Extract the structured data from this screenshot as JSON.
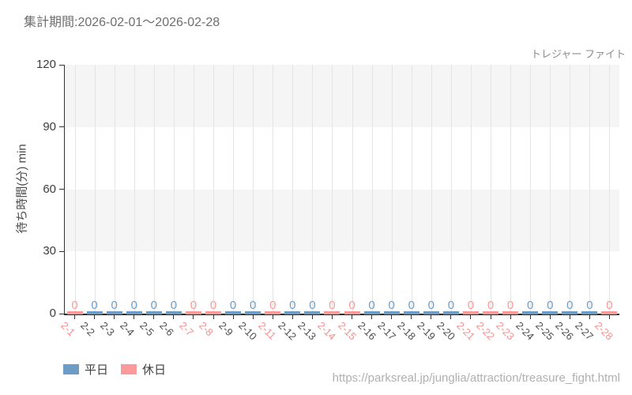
{
  "header": {
    "title": "集計期間:2026-02-01〜2026-02-28"
  },
  "footer": {
    "url": "https://parksreal.jp/junglia/attraction/treasure_fight.html"
  },
  "colors": {
    "weekday": "#6d9dc7",
    "holiday": "#fb9a99",
    "weekday_tick_label": "#4d4d4d",
    "holiday_tick_label": "#f4908e",
    "band": "#f5f5f5",
    "gridline": "#e4e4e4",
    "axis": "#2b2b2b",
    "y_tick_label": "#3d3d3d",
    "title_text": "#6e6e6e",
    "attraction_text": "#8c8c8c",
    "url_text": "#b0b0b0"
  },
  "chart_data": {
    "type": "bar",
    "title": "トレジャー ファイト",
    "xlabel": "",
    "ylabel": "待ち時間(分) min",
    "ylim": [
      0,
      120
    ],
    "yticks": [
      0,
      30,
      60,
      90,
      120
    ],
    "grid": "vertical",
    "band_stripes": "horizontal bands shaded between 30-60 and 90-120",
    "legend_position": "bottom-left",
    "value_labels_shown": true,
    "categories": [
      "2-1",
      "2-2",
      "2-3",
      "2-4",
      "2-5",
      "2-6",
      "2-7",
      "2-8",
      "2-9",
      "2-10",
      "2-11",
      "2-12",
      "2-13",
      "2-14",
      "2-15",
      "2-16",
      "2-17",
      "2-18",
      "2-19",
      "2-20",
      "2-21",
      "2-22",
      "2-23",
      "2-24",
      "2-25",
      "2-26",
      "2-27",
      "2-28"
    ],
    "category_types": [
      "holiday",
      "weekday",
      "weekday",
      "weekday",
      "weekday",
      "weekday",
      "holiday",
      "holiday",
      "weekday",
      "weekday",
      "holiday",
      "weekday",
      "weekday",
      "holiday",
      "holiday",
      "weekday",
      "weekday",
      "weekday",
      "weekday",
      "weekday",
      "holiday",
      "holiday",
      "holiday",
      "weekday",
      "weekday",
      "weekday",
      "weekday",
      "holiday"
    ],
    "series": [
      {
        "name": "平日",
        "key": "weekday",
        "color": "#6d9dc7",
        "values": [
          null,
          0,
          0,
          0,
          0,
          0,
          null,
          null,
          0,
          0,
          null,
          0,
          0,
          null,
          null,
          0,
          0,
          0,
          0,
          0,
          null,
          null,
          null,
          0,
          0,
          0,
          0,
          null
        ]
      },
      {
        "name": "休日",
        "key": "holiday",
        "color": "#fb9a99",
        "values": [
          0,
          null,
          null,
          null,
          null,
          null,
          0,
          0,
          null,
          null,
          0,
          null,
          null,
          0,
          0,
          null,
          null,
          null,
          null,
          null,
          0,
          0,
          0,
          null,
          null,
          null,
          null,
          0
        ]
      }
    ]
  }
}
